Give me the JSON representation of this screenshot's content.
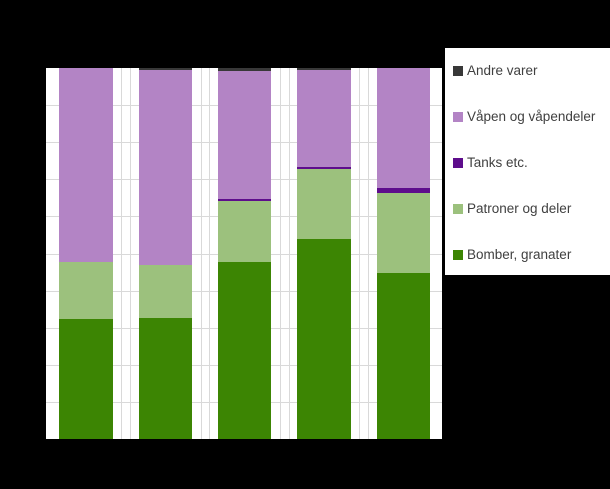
{
  "colors": {
    "background": "#000000",
    "plot_background": "#ffffff",
    "gridline": "#d9d9d9",
    "legend_background": "#ffffff",
    "legend_text": "#404040"
  },
  "legend": {
    "position": "right",
    "items": [
      {
        "label": "Andre varer",
        "color": "#383838"
      },
      {
        "label": "Våpen og våpendeler",
        "color": "#b384c5"
      },
      {
        "label": "Tanks etc.",
        "color": "#5e0d8c"
      },
      {
        "label": "Patroner og deler",
        "color": "#9cc17d"
      },
      {
        "label": "Bomber, granater",
        "color": "#3c8503"
      }
    ]
  },
  "chart_data": {
    "type": "bar",
    "stacked": true,
    "stacking": "percent",
    "orientation": "vertical",
    "title": "",
    "xlabel": "",
    "ylabel": "",
    "categories": [
      "",
      "",
      "",
      "",
      ""
    ],
    "series": [
      {
        "name": "Bomber, granater",
        "color": "#3c8503",
        "values": [
          32.3,
          32.6,
          47.7,
          53.9,
          44.7
        ]
      },
      {
        "name": "Patroner og deler",
        "color": "#9cc17d",
        "values": [
          15.4,
          14.3,
          16.4,
          18.9,
          21.6
        ]
      },
      {
        "name": "Tanks etc.",
        "color": "#5e0d8c",
        "values": [
          0,
          0,
          0.5,
          0.5,
          1.4
        ]
      },
      {
        "name": "Våpen og våpendeler",
        "color": "#b384c5",
        "values": [
          52.3,
          52.6,
          34.7,
          26.2,
          32.3
        ]
      },
      {
        "name": "Andre varer",
        "color": "#383838",
        "values": [
          0,
          0.5,
          0.7,
          0.5,
          0
        ]
      }
    ],
    "ylim": [
      0,
      100
    ],
    "grid": true,
    "gridline_step_percent": 10,
    "legend_position": "right"
  }
}
